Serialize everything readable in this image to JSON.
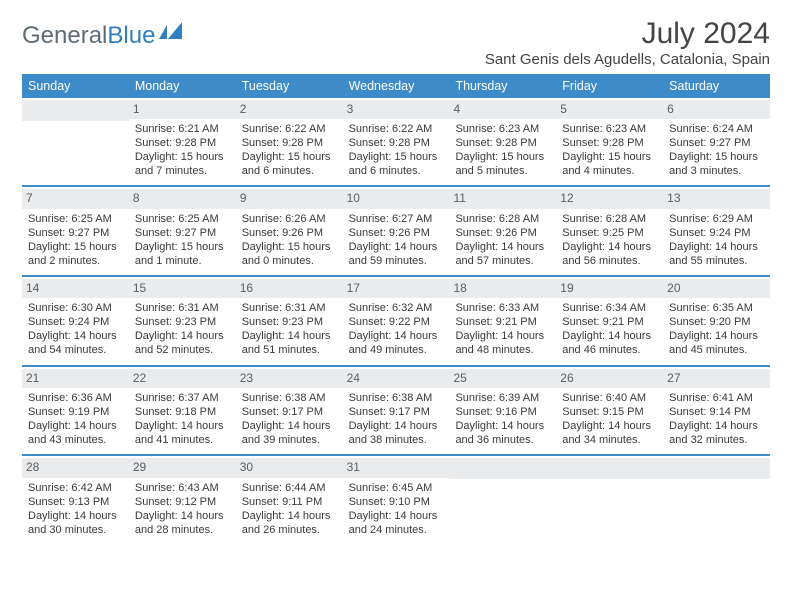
{
  "brand": {
    "part1": "General",
    "part2": "Blue"
  },
  "colors": {
    "brand_gray": "#5f6b72",
    "brand_blue": "#2f7fc1",
    "header_blue": "#3d8bc8",
    "row_divider": "#3d8bc8",
    "daynum_bg": "#e9ebed",
    "daynum_fg": "#5a5e62",
    "body_text": "#3a3a3a",
    "title_text": "#444444",
    "background": "#ffffff"
  },
  "typography": {
    "logo_fontsize": 24,
    "title_fontsize": 30,
    "location_fontsize": 15,
    "dow_fontsize": 12.5,
    "daynum_fontsize": 12,
    "body_fontsize": 11,
    "font_family": "Arial"
  },
  "title": "July 2024",
  "location": "Sant Genis dels Agudells, Catalonia, Spain",
  "dow": [
    "Sunday",
    "Monday",
    "Tuesday",
    "Wednesday",
    "Thursday",
    "Friday",
    "Saturday"
  ],
  "weeks": [
    [
      {
        "n": "",
        "lines": []
      },
      {
        "n": "1",
        "lines": [
          "Sunrise: 6:21 AM",
          "Sunset: 9:28 PM",
          "Daylight: 15 hours",
          "and 7 minutes."
        ]
      },
      {
        "n": "2",
        "lines": [
          "Sunrise: 6:22 AM",
          "Sunset: 9:28 PM",
          "Daylight: 15 hours",
          "and 6 minutes."
        ]
      },
      {
        "n": "3",
        "lines": [
          "Sunrise: 6:22 AM",
          "Sunset: 9:28 PM",
          "Daylight: 15 hours",
          "and 6 minutes."
        ]
      },
      {
        "n": "4",
        "lines": [
          "Sunrise: 6:23 AM",
          "Sunset: 9:28 PM",
          "Daylight: 15 hours",
          "and 5 minutes."
        ]
      },
      {
        "n": "5",
        "lines": [
          "Sunrise: 6:23 AM",
          "Sunset: 9:28 PM",
          "Daylight: 15 hours",
          "and 4 minutes."
        ]
      },
      {
        "n": "6",
        "lines": [
          "Sunrise: 6:24 AM",
          "Sunset: 9:27 PM",
          "Daylight: 15 hours",
          "and 3 minutes."
        ]
      }
    ],
    [
      {
        "n": "7",
        "lines": [
          "Sunrise: 6:25 AM",
          "Sunset: 9:27 PM",
          "Daylight: 15 hours",
          "and 2 minutes."
        ]
      },
      {
        "n": "8",
        "lines": [
          "Sunrise: 6:25 AM",
          "Sunset: 9:27 PM",
          "Daylight: 15 hours",
          "and 1 minute."
        ]
      },
      {
        "n": "9",
        "lines": [
          "Sunrise: 6:26 AM",
          "Sunset: 9:26 PM",
          "Daylight: 15 hours",
          "and 0 minutes."
        ]
      },
      {
        "n": "10",
        "lines": [
          "Sunrise: 6:27 AM",
          "Sunset: 9:26 PM",
          "Daylight: 14 hours",
          "and 59 minutes."
        ]
      },
      {
        "n": "11",
        "lines": [
          "Sunrise: 6:28 AM",
          "Sunset: 9:26 PM",
          "Daylight: 14 hours",
          "and 57 minutes."
        ]
      },
      {
        "n": "12",
        "lines": [
          "Sunrise: 6:28 AM",
          "Sunset: 9:25 PM",
          "Daylight: 14 hours",
          "and 56 minutes."
        ]
      },
      {
        "n": "13",
        "lines": [
          "Sunrise: 6:29 AM",
          "Sunset: 9:24 PM",
          "Daylight: 14 hours",
          "and 55 minutes."
        ]
      }
    ],
    [
      {
        "n": "14",
        "lines": [
          "Sunrise: 6:30 AM",
          "Sunset: 9:24 PM",
          "Daylight: 14 hours",
          "and 54 minutes."
        ]
      },
      {
        "n": "15",
        "lines": [
          "Sunrise: 6:31 AM",
          "Sunset: 9:23 PM",
          "Daylight: 14 hours",
          "and 52 minutes."
        ]
      },
      {
        "n": "16",
        "lines": [
          "Sunrise: 6:31 AM",
          "Sunset: 9:23 PM",
          "Daylight: 14 hours",
          "and 51 minutes."
        ]
      },
      {
        "n": "17",
        "lines": [
          "Sunrise: 6:32 AM",
          "Sunset: 9:22 PM",
          "Daylight: 14 hours",
          "and 49 minutes."
        ]
      },
      {
        "n": "18",
        "lines": [
          "Sunrise: 6:33 AM",
          "Sunset: 9:21 PM",
          "Daylight: 14 hours",
          "and 48 minutes."
        ]
      },
      {
        "n": "19",
        "lines": [
          "Sunrise: 6:34 AM",
          "Sunset: 9:21 PM",
          "Daylight: 14 hours",
          "and 46 minutes."
        ]
      },
      {
        "n": "20",
        "lines": [
          "Sunrise: 6:35 AM",
          "Sunset: 9:20 PM",
          "Daylight: 14 hours",
          "and 45 minutes."
        ]
      }
    ],
    [
      {
        "n": "21",
        "lines": [
          "Sunrise: 6:36 AM",
          "Sunset: 9:19 PM",
          "Daylight: 14 hours",
          "and 43 minutes."
        ]
      },
      {
        "n": "22",
        "lines": [
          "Sunrise: 6:37 AM",
          "Sunset: 9:18 PM",
          "Daylight: 14 hours",
          "and 41 minutes."
        ]
      },
      {
        "n": "23",
        "lines": [
          "Sunrise: 6:38 AM",
          "Sunset: 9:17 PM",
          "Daylight: 14 hours",
          "and 39 minutes."
        ]
      },
      {
        "n": "24",
        "lines": [
          "Sunrise: 6:38 AM",
          "Sunset: 9:17 PM",
          "Daylight: 14 hours",
          "and 38 minutes."
        ]
      },
      {
        "n": "25",
        "lines": [
          "Sunrise: 6:39 AM",
          "Sunset: 9:16 PM",
          "Daylight: 14 hours",
          "and 36 minutes."
        ]
      },
      {
        "n": "26",
        "lines": [
          "Sunrise: 6:40 AM",
          "Sunset: 9:15 PM",
          "Daylight: 14 hours",
          "and 34 minutes."
        ]
      },
      {
        "n": "27",
        "lines": [
          "Sunrise: 6:41 AM",
          "Sunset: 9:14 PM",
          "Daylight: 14 hours",
          "and 32 minutes."
        ]
      }
    ],
    [
      {
        "n": "28",
        "lines": [
          "Sunrise: 6:42 AM",
          "Sunset: 9:13 PM",
          "Daylight: 14 hours",
          "and 30 minutes."
        ]
      },
      {
        "n": "29",
        "lines": [
          "Sunrise: 6:43 AM",
          "Sunset: 9:12 PM",
          "Daylight: 14 hours",
          "and 28 minutes."
        ]
      },
      {
        "n": "30",
        "lines": [
          "Sunrise: 6:44 AM",
          "Sunset: 9:11 PM",
          "Daylight: 14 hours",
          "and 26 minutes."
        ]
      },
      {
        "n": "31",
        "lines": [
          "Sunrise: 6:45 AM",
          "Sunset: 9:10 PM",
          "Daylight: 14 hours",
          "and 24 minutes."
        ]
      },
      {
        "n": "",
        "lines": []
      },
      {
        "n": "",
        "lines": []
      },
      {
        "n": "",
        "lines": []
      }
    ]
  ]
}
